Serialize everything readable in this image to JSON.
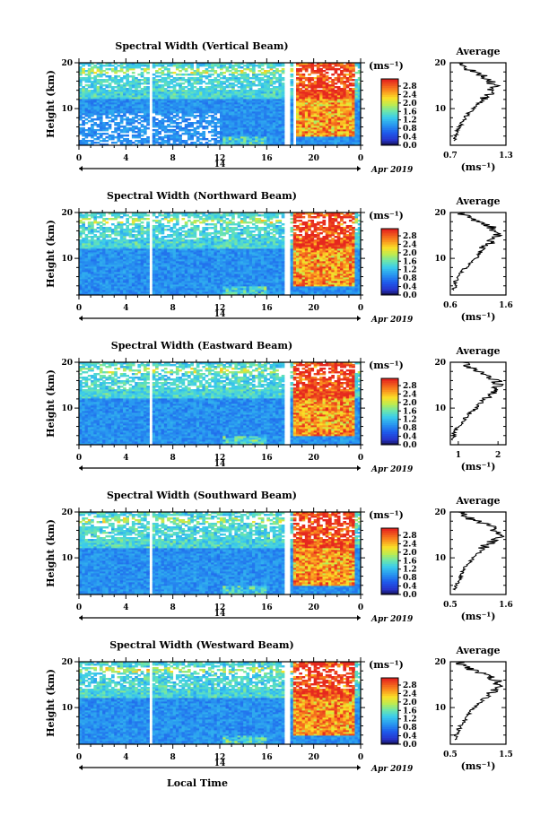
{
  "chart_data": [
    {
      "type": "heatmap",
      "title": "Spectral Width (Vertical Beam)",
      "ylabel": "Height (km)",
      "ylim": [
        2,
        20
      ],
      "yticks": [
        "10",
        "20"
      ],
      "xlim": [
        0,
        24
      ],
      "xticks": [
        "0",
        "4",
        "8",
        "12",
        "16",
        "20",
        "0"
      ],
      "day_label": "14",
      "date_label": "Apr 2019",
      "colorbar": {
        "unit": "(ms⁻¹)",
        "ticks": [
          "2.8",
          "2.4",
          "2.0",
          "1.6",
          "1.2",
          "0.8",
          "0.4",
          "0.0"
        ]
      },
      "average_profile": {
        "title": "Average",
        "xlabel": "(ms⁻¹)",
        "xticks": [
          "0.7",
          "1.3"
        ],
        "xlim": [
          0.7,
          1.3
        ],
        "yticks": [
          "10",
          "20"
        ],
        "heights": [
          3,
          4,
          5,
          6,
          7,
          8,
          9,
          10,
          11,
          12,
          13,
          14,
          15,
          16,
          17,
          18,
          19,
          20
        ],
        "values": [
          0.74,
          0.76,
          0.77,
          0.8,
          0.83,
          0.86,
          0.9,
          0.95,
          1.0,
          1.06,
          1.1,
          1.15,
          1.18,
          1.12,
          1.05,
          0.95,
          0.85,
          0.78
        ]
      }
    },
    {
      "type": "heatmap",
      "title": "Spectral Width (Northward Beam)",
      "ylabel": "Height (km)",
      "ylim": [
        2,
        20
      ],
      "yticks": [
        "10",
        "20"
      ],
      "xlim": [
        0,
        24
      ],
      "xticks": [
        "0",
        "4",
        "8",
        "12",
        "16",
        "20",
        "0"
      ],
      "day_label": "14",
      "date_label": "Apr 2019",
      "colorbar": {
        "unit": "(ms⁻¹)",
        "ticks": [
          "2.8",
          "2.4",
          "2.0",
          "1.6",
          "1.2",
          "0.8",
          "0.4",
          "0.0"
        ]
      },
      "average_profile": {
        "title": "Average",
        "xlabel": "(ms⁻¹)",
        "xticks": [
          "0.6",
          "1.6"
        ],
        "xlim": [
          0.6,
          1.6
        ],
        "yticks": [
          "10",
          "20"
        ],
        "heights": [
          3,
          4,
          5,
          6,
          7,
          8,
          9,
          10,
          11,
          12,
          13,
          14,
          15,
          16,
          17,
          18,
          19,
          20
        ],
        "values": [
          0.66,
          0.68,
          0.7,
          0.75,
          0.8,
          0.88,
          0.95,
          1.05,
          1.12,
          1.2,
          1.28,
          1.38,
          1.45,
          1.4,
          1.3,
          1.1,
          0.9,
          0.75
        ]
      }
    },
    {
      "type": "heatmap",
      "title": "Spectral Width (Eastward Beam)",
      "ylabel": "Height (km)",
      "ylim": [
        2,
        20
      ],
      "yticks": [
        "10",
        "20"
      ],
      "xlim": [
        0,
        24
      ],
      "xticks": [
        "0",
        "4",
        "8",
        "12",
        "16",
        "20",
        "0"
      ],
      "day_label": "14",
      "date_label": "Apr 2019",
      "colorbar": {
        "unit": "(ms⁻¹)",
        "ticks": [
          "2.8",
          "2.4",
          "2.0",
          "1.6",
          "1.2",
          "0.8",
          "0.4",
          "0.0"
        ]
      },
      "average_profile": {
        "title": "Average",
        "xlabel": "(ms⁻¹)",
        "xticks": [
          "1",
          "2"
        ],
        "xlim": [
          0.8,
          2.2
        ],
        "yticks": [
          "10",
          "20"
        ],
        "heights": [
          3,
          4,
          5,
          6,
          7,
          8,
          9,
          10,
          11,
          12,
          13,
          14,
          15,
          16,
          17,
          18,
          19,
          20
        ],
        "values": [
          0.86,
          0.88,
          0.92,
          1.0,
          1.1,
          1.2,
          1.3,
          1.45,
          1.55,
          1.65,
          1.8,
          1.95,
          2.05,
          1.95,
          1.8,
          1.55,
          1.3,
          1.1
        ]
      }
    },
    {
      "type": "heatmap",
      "title": "Spectral Width (Southward Beam)",
      "ylabel": "Height (km)",
      "ylim": [
        2,
        20
      ],
      "yticks": [
        "10",
        "20"
      ],
      "xlim": [
        0,
        24
      ],
      "xticks": [
        "0",
        "4",
        "8",
        "12",
        "16",
        "20",
        "0"
      ],
      "day_label": "14",
      "date_label": "Apr 2019",
      "colorbar": {
        "unit": "(ms⁻¹)",
        "ticks": [
          "2.8",
          "2.4",
          "2.0",
          "1.6",
          "1.2",
          "0.8",
          "0.4",
          "0.0"
        ]
      },
      "average_profile": {
        "title": "Average",
        "xlabel": "(ms⁻¹)",
        "xticks": [
          "0.5",
          "1.6"
        ],
        "xlim": [
          0.5,
          1.6
        ],
        "yticks": [
          "10",
          "20"
        ],
        "heights": [
          3,
          4,
          5,
          6,
          7,
          8,
          9,
          10,
          11,
          12,
          13,
          14,
          15,
          16,
          17,
          18,
          19,
          20
        ],
        "values": [
          0.6,
          0.62,
          0.66,
          0.7,
          0.75,
          0.8,
          0.88,
          0.95,
          1.05,
          1.15,
          1.25,
          1.38,
          1.48,
          1.4,
          1.25,
          1.0,
          0.8,
          0.65
        ]
      }
    },
    {
      "type": "heatmap",
      "title": "Spectral Width (Westward Beam)",
      "ylabel": "Height (km)",
      "ylim": [
        2,
        20
      ],
      "yticks": [
        "10",
        "20"
      ],
      "xlim": [
        0,
        24
      ],
      "xticks": [
        "0",
        "4",
        "8",
        "12",
        "16",
        "20",
        "0"
      ],
      "day_label": "14",
      "date_label": "Apr 2019",
      "xlabel": "Local Time",
      "colorbar": {
        "unit": "(ms⁻¹)",
        "ticks": [
          "2.8",
          "2.4",
          "2.0",
          "1.6",
          "1.2",
          "0.8",
          "0.4",
          "0.0"
        ]
      },
      "average_profile": {
        "title": "Average",
        "xlabel": "(ms⁻¹)",
        "xticks": [
          "0.5",
          "1.5"
        ],
        "xlim": [
          0.5,
          1.5
        ],
        "yticks": [
          "10",
          "20"
        ],
        "heights": [
          3,
          4,
          5,
          6,
          7,
          8,
          9,
          10,
          11,
          12,
          13,
          14,
          15,
          16,
          17,
          18,
          19,
          20
        ],
        "values": [
          0.58,
          0.6,
          0.64,
          0.68,
          0.74,
          0.8,
          0.86,
          0.94,
          1.02,
          1.1,
          1.2,
          1.3,
          1.38,
          1.3,
          1.18,
          0.95,
          0.78,
          0.62
        ]
      }
    }
  ]
}
